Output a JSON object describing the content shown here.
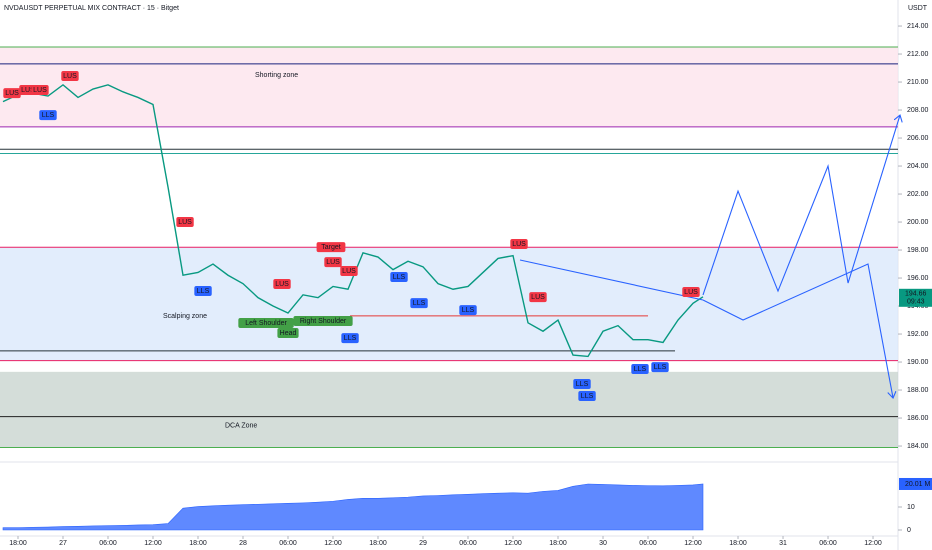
{
  "chart_data": [
    {
      "type": "line",
      "title": "NVDAUSDT PERPETUAL MIX CONTRACT · 15 · Bitget",
      "axis_unit": "USDT",
      "color": "#089981",
      "x": [
        16,
        18,
        20,
        22,
        24,
        26,
        28,
        30,
        32,
        34,
        36,
        38,
        40,
        42,
        44,
        46,
        48,
        50,
        52,
        54,
        56,
        58,
        60,
        62,
        64,
        66,
        68,
        70,
        72,
        74,
        76,
        78,
        80,
        82,
        84,
        86,
        88,
        90,
        92,
        94,
        96,
        98,
        100,
        102,
        104,
        106,
        108,
        109.33
      ],
      "values": [
        208.6,
        209.1,
        209.2,
        209.0,
        209.8,
        208.9,
        209.5,
        209.8,
        209.3,
        208.9,
        208.4,
        202.5,
        196.2,
        196.4,
        197.0,
        196.2,
        195.6,
        194.6,
        194.0,
        193.5,
        194.8,
        194.6,
        195.4,
        195.2,
        197.8,
        197.5,
        196.6,
        197.2,
        196.8,
        195.6,
        195.2,
        195.4,
        196.4,
        197.4,
        197.6,
        192.8,
        192.2,
        193.0,
        190.5,
        190.4,
        192.2,
        192.6,
        191.6,
        191.6,
        191.4,
        193.0,
        194.2,
        194.66
      ],
      "last_price_label": "194.66",
      "countdown": "09:43",
      "xlim": [
        15.6,
        135.33
      ],
      "xticks": [
        {
          "value": 18,
          "label": "18:00"
        },
        {
          "value": 24,
          "label": "27"
        },
        {
          "value": 30,
          "label": "06:00"
        },
        {
          "value": 36,
          "label": "12:00"
        },
        {
          "value": 42,
          "label": "18:00"
        },
        {
          "value": 48,
          "label": "28"
        },
        {
          "value": 54,
          "label": "06:00"
        },
        {
          "value": 60,
          "label": "12:00"
        },
        {
          "value": 66,
          "label": "18:00"
        },
        {
          "value": 72,
          "label": "29"
        },
        {
          "value": 78,
          "label": "06:00"
        },
        {
          "value": 84,
          "label": "12:00"
        },
        {
          "value": 90,
          "label": "18:00"
        },
        {
          "value": 96,
          "label": "30"
        },
        {
          "value": 102,
          "label": "06:00"
        },
        {
          "value": 108,
          "label": "12:00"
        },
        {
          "value": 114,
          "label": "18:00"
        },
        {
          "value": 120,
          "label": "31"
        },
        {
          "value": 126,
          "label": "06:00"
        },
        {
          "value": 132,
          "label": "12:00"
        }
      ],
      "ylim": [
        183.36,
        215.86
      ],
      "yticks": [
        {
          "value": 184,
          "label": "184.00"
        },
        {
          "value": 186,
          "label": "186.00"
        },
        {
          "value": 188,
          "label": "188.00"
        },
        {
          "value": 190,
          "label": "190.00"
        },
        {
          "value": 192,
          "label": "192.00"
        },
        {
          "value": 194,
          "label": "194.00"
        },
        {
          "value": 196,
          "label": "196.00"
        },
        {
          "value": 198,
          "label": "198.00"
        },
        {
          "value": 200,
          "label": "200.00"
        },
        {
          "value": 202,
          "label": "202.00"
        },
        {
          "value": 204,
          "label": "204.00"
        },
        {
          "value": 206,
          "label": "206.00"
        },
        {
          "value": 208,
          "label": "208.00"
        },
        {
          "value": 210,
          "label": "210.00"
        },
        {
          "value": 212,
          "label": "212.00"
        },
        {
          "value": 214,
          "label": "214.00"
        }
      ],
      "zones": [
        {
          "name": "Shorting zone",
          "from": 206.8,
          "to": 212.5,
          "color": "#fce4ec",
          "text_color": "#5e35b1"
        },
        {
          "name": "Scalping zone",
          "from": 190.1,
          "to": 198.2,
          "color": "#dbe8fb",
          "text_color": "#5e35b1"
        },
        {
          "name": "DCA Zone",
          "from": 183.9,
          "to": 189.3,
          "color": "#c9d4cf",
          "text_color": "#26a6a6"
        }
      ],
      "levels": [
        {
          "price": 212.5,
          "color": "#4caf50"
        },
        {
          "price": 211.3,
          "color": "#1a237e"
        },
        {
          "price": 206.8,
          "color": "#9c27b0"
        },
        {
          "price": 205.2,
          "color": "#263238"
        },
        {
          "price": 204.9,
          "color": "#26a69a"
        },
        {
          "price": 198.2,
          "color": "#e91e63"
        },
        {
          "price": 190.1,
          "color": "#e91e63"
        },
        {
          "price": 186.1,
          "color": "#212121"
        },
        {
          "price": 183.9,
          "color": "#4caf50"
        },
        {
          "price": 190.8,
          "color": "#263238",
          "end": 105.6
        },
        {
          "price": 193.3,
          "color": "#e53935",
          "start": 62.27,
          "end": 102
        }
      ],
      "trendlines": [
        {
          "color": "#2962ff",
          "arrow": false,
          "points": [
            [
              84.93,
              197.29
            ],
            [
              109.33,
              194.43
            ]
          ]
        },
        {
          "color": "#2962ff",
          "arrow": true,
          "points": [
            [
              109.33,
              194.79
            ],
            [
              114,
              202.21
            ],
            [
              119.33,
              195.07
            ],
            [
              126,
              204
            ],
            [
              128.67,
              195.64
            ],
            [
              135.6,
              207.64
            ]
          ]
        },
        {
          "color": "#2962ff",
          "arrow": true,
          "points": [
            [
              109.33,
              194.43
            ],
            [
              114.67,
              193
            ],
            [
              131.33,
              197
            ],
            [
              134.67,
              187.43
            ]
          ]
        }
      ],
      "markers": [
        {
          "text": "LUS",
          "x": 17.2,
          "price": 209.21,
          "color": "#f23645"
        },
        {
          "text": "LUS",
          "x": 19.33,
          "price": 209.43,
          "color": "#f23645"
        },
        {
          "text": "LUS",
          "x": 20.93,
          "price": 209.43,
          "color": "#f23645"
        },
        {
          "text": "LUS",
          "x": 24.93,
          "price": 210.43,
          "color": "#f23645"
        },
        {
          "text": "LUS",
          "x": 40.27,
          "price": 200.0,
          "color": "#f23645"
        },
        {
          "text": "LUS",
          "x": 60,
          "price": 197.14,
          "color": "#f23645"
        },
        {
          "text": "LUS",
          "x": 62.13,
          "price": 196.5,
          "color": "#f23645"
        },
        {
          "text": "LUS",
          "x": 53.2,
          "price": 195.57,
          "color": "#f23645"
        },
        {
          "text": "LUS",
          "x": 84.8,
          "price": 198.43,
          "color": "#f23645"
        },
        {
          "text": "LUS",
          "x": 87.33,
          "price": 194.64,
          "color": "#f23645"
        },
        {
          "text": "LUS",
          "x": 107.73,
          "price": 195.0,
          "color": "#f23645"
        },
        {
          "text": "LLS",
          "x": 22,
          "price": 207.64,
          "color": "#2962ff"
        },
        {
          "text": "LLS",
          "x": 42.67,
          "price": 195.07,
          "color": "#2962ff"
        },
        {
          "text": "LLS",
          "x": 68.8,
          "price": 196.07,
          "color": "#2962ff"
        },
        {
          "text": "LLS",
          "x": 71.47,
          "price": 194.21,
          "color": "#2962ff"
        },
        {
          "text": "LLS",
          "x": 78,
          "price": 193.71,
          "color": "#2962ff"
        },
        {
          "text": "LLS",
          "x": 62.27,
          "price": 191.71,
          "color": "#2962ff"
        },
        {
          "text": "LLS",
          "x": 93.2,
          "price": 188.43,
          "color": "#2962ff"
        },
        {
          "text": "LLS",
          "x": 93.87,
          "price": 187.57,
          "color": "#2962ff"
        },
        {
          "text": "LLS",
          "x": 100.93,
          "price": 189.5,
          "color": "#2962ff"
        },
        {
          "text": "LLS",
          "x": 103.6,
          "price": 189.64,
          "color": "#2962ff"
        },
        {
          "text": "Target",
          "x": 59.73,
          "price": 198.21,
          "color": "#f23645"
        },
        {
          "text": "Left Shoulder",
          "x": 51.07,
          "price": 192.79,
          "color": "#43a047"
        },
        {
          "text": "Head",
          "x": 54,
          "price": 192.07,
          "color": "#43a047"
        },
        {
          "text": "Right Shoulder",
          "x": 58.67,
          "price": 192.93,
          "color": "#43a047"
        }
      ]
    },
    {
      "type": "area",
      "color": "#2962ff",
      "values": [
        1.0,
        1.0,
        1.2,
        1.3,
        1.5,
        1.6,
        1.8,
        1.9,
        2.0,
        2.2,
        2.3,
        2.8,
        9.5,
        10.2,
        10.5,
        10.8,
        11.0,
        11.2,
        11.4,
        11.6,
        11.8,
        12.1,
        12.5,
        13.3,
        13.8,
        13.8,
        14.0,
        14.3,
        14.8,
        15.0,
        15.3,
        15.5,
        15.8,
        16.0,
        16.2,
        16.0,
        16.8,
        17.2,
        19.0,
        20.0,
        19.8,
        19.6,
        19.4,
        19.3,
        19.2,
        19.4,
        19.6,
        20.01
      ],
      "last_label": "20.01 M",
      "ylim": [
        -2.17,
        26.09
      ],
      "yticks": [
        0,
        10
      ]
    }
  ]
}
